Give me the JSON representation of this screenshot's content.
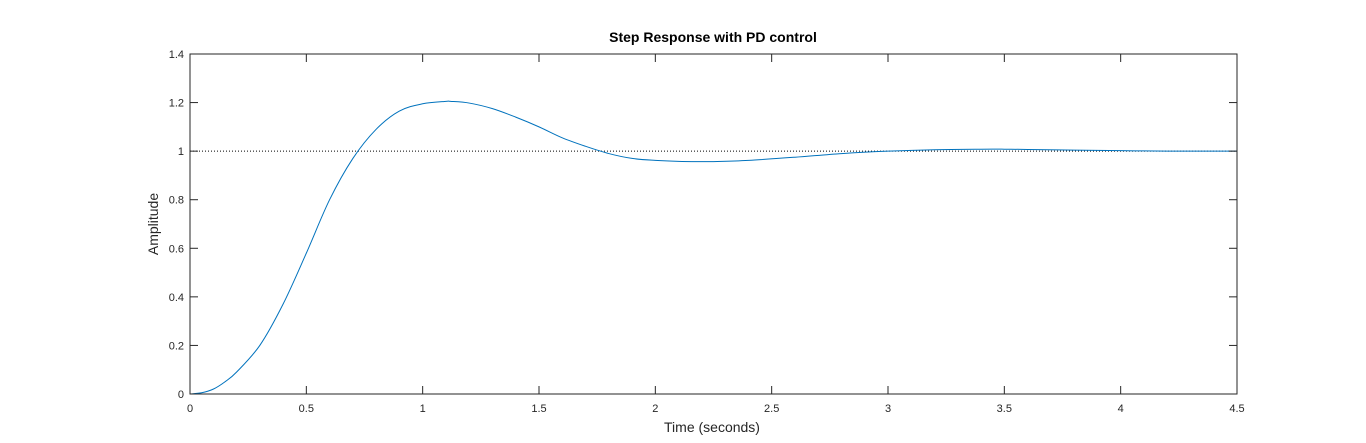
{
  "chart_data": {
    "type": "line",
    "title": "Step Response with PD control",
    "xlabel": "Time (seconds)",
    "ylabel": "Amplitude",
    "xlim": [
      0,
      4.5
    ],
    "ylim": [
      0,
      1.4
    ],
    "xticks": [
      0,
      0.5,
      1,
      1.5,
      2,
      2.5,
      3,
      3.5,
      4,
      4.5
    ],
    "xtick_labels": [
      "0",
      "0.5",
      "1",
      "1.5",
      "2",
      "2.5",
      "3",
      "3.5",
      "4",
      "4.5"
    ],
    "yticks": [
      0,
      0.2,
      0.4,
      0.6,
      0.8,
      1,
      1.2,
      1.4
    ],
    "ytick_labels": [
      "0",
      "0.2",
      "0.4",
      "0.6",
      "0.8",
      "1",
      "1.2",
      "1.4"
    ],
    "grid": false,
    "reference_line": {
      "y": 1,
      "style": "dotted",
      "color": "#000000"
    },
    "series": [
      {
        "color": "#0072BD",
        "x": [
          0,
          0.05,
          0.1,
          0.15,
          0.2,
          0.3,
          0.4,
          0.5,
          0.6,
          0.7,
          0.8,
          0.9,
          1.0,
          1.1,
          1.12,
          1.2,
          1.3,
          1.4,
          1.5,
          1.6,
          1.7,
          1.8,
          1.9,
          2.0,
          2.1,
          2.2,
          2.25,
          2.4,
          2.6,
          2.8,
          3.0,
          3.2,
          3.4,
          3.5,
          3.6,
          3.8,
          4.0,
          4.2,
          4.5
        ],
        "y": [
          0,
          0.005,
          0.02,
          0.05,
          0.09,
          0.2,
          0.37,
          0.58,
          0.8,
          0.97,
          1.09,
          1.165,
          1.195,
          1.205,
          1.205,
          1.198,
          1.175,
          1.14,
          1.1,
          1.055,
          1.02,
          0.99,
          0.97,
          0.962,
          0.958,
          0.957,
          0.957,
          0.962,
          0.975,
          0.99,
          1.0,
          1.006,
          1.008,
          1.008,
          1.007,
          1.004,
          1.002,
          1.0,
          1.0
        ]
      }
    ]
  }
}
